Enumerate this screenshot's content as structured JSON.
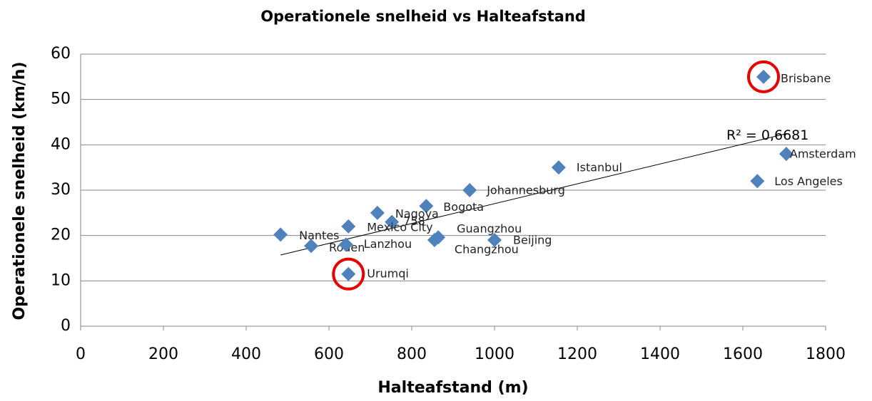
{
  "chart_data": {
    "type": "scatter",
    "title": "Operationele snelheid vs Halteafstand",
    "x_label": "Halteafstand (m)",
    "y_label": "Operationele snelheid (km/h)",
    "labels": [
      "Brisbane",
      "Amsterdam",
      "Los Angeles",
      "Istanbul",
      "Johannesburg",
      "Bogota",
      "Nagoya",
      "758",
      "Mexico City",
      "Nantes",
      "Rouen",
      "Lanzhou",
      "Guangzhou",
      "Changzhou",
      "Beijing",
      "Urumqi"
    ],
    "x": [
      1650,
      1705,
      1635,
      1155,
      940,
      835,
      717,
      752,
      647,
      483,
      557,
      641,
      864,
      855,
      1000,
      647
    ],
    "y": [
      55,
      38,
      32,
      35,
      30,
      26.5,
      25,
      23,
      22,
      20.2,
      17.7,
      18,
      19.6,
      19,
      19,
      11.5
    ],
    "color": "#4f81bd",
    "highlight": [
      0,
      15
    ],
    "highlight_color": "#e60000",
    "trendline": {
      "x": [
        483,
        1707
      ],
      "y": [
        15.7,
        42.5
      ],
      "label": "R² = 0,6681"
    },
    "xlim": [
      0,
      1800
    ],
    "xticks": [
      0,
      200,
      400,
      600,
      800,
      1000,
      1200,
      1400,
      1600,
      1800
    ],
    "ylim": [
      0,
      60
    ],
    "yticks": [
      0,
      10,
      20,
      30,
      40,
      50,
      60
    ],
    "grid": true
  }
}
